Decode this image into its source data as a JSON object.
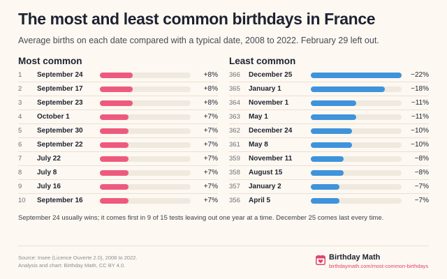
{
  "title": "The most and least common birthdays in France",
  "subtitle": "Average births on each date compared with a typical date, 2008 to 2022. February 29 left out.",
  "note": "September 24 usually wins; it comes first in 9 of 15 tests leaving out one year at a time. December 25 comes last every time.",
  "source": {
    "line1": "Source: Insee (Licence Ouverte 2.0), 2008 to 2022.",
    "line2": "Analysis and chart: Birthday Math, CC BY 4.0."
  },
  "brand": {
    "name": "Birthday Math",
    "url": "birthdaymath.com/most-common-birthdays",
    "icon": "calendar-heart-icon"
  },
  "colors": {
    "most": "#ee5a7e",
    "least": "#3f93db",
    "track": "#efe9df"
  },
  "chart_data": [
    {
      "type": "bar",
      "title": "Most common",
      "unit": "%",
      "xlim": [
        0,
        22
      ],
      "ranks": [
        1,
        2,
        3,
        4,
        5,
        6,
        7,
        8,
        9,
        10
      ],
      "categories": [
        "September 24",
        "September 17",
        "September 23",
        "October 1",
        "September 30",
        "September 22",
        "July 22",
        "July 8",
        "July 16",
        "September 16"
      ],
      "values": [
        8,
        8,
        8,
        7,
        7,
        7,
        7,
        7,
        7,
        7
      ],
      "labels": [
        "+8%",
        "+8%",
        "+8%",
        "+7%",
        "+7%",
        "+7%",
        "+7%",
        "+7%",
        "+7%",
        "+7%"
      ]
    },
    {
      "type": "bar",
      "title": "Least common",
      "unit": "%",
      "xlim": [
        0,
        22
      ],
      "ranks": [
        366,
        365,
        364,
        363,
        362,
        361,
        359,
        358,
        357,
        356
      ],
      "categories": [
        "December 25",
        "January 1",
        "November 1",
        "May 1",
        "December 24",
        "May 8",
        "November 11",
        "August 15",
        "January 2",
        "April 5"
      ],
      "values": [
        -22,
        -18,
        -11,
        -11,
        -10,
        -10,
        -8,
        -8,
        -7,
        -7
      ],
      "labels": [
        "−22%",
        "−18%",
        "−11%",
        "−11%",
        "−10%",
        "−10%",
        "−8%",
        "−8%",
        "−7%",
        "−7%"
      ]
    }
  ]
}
